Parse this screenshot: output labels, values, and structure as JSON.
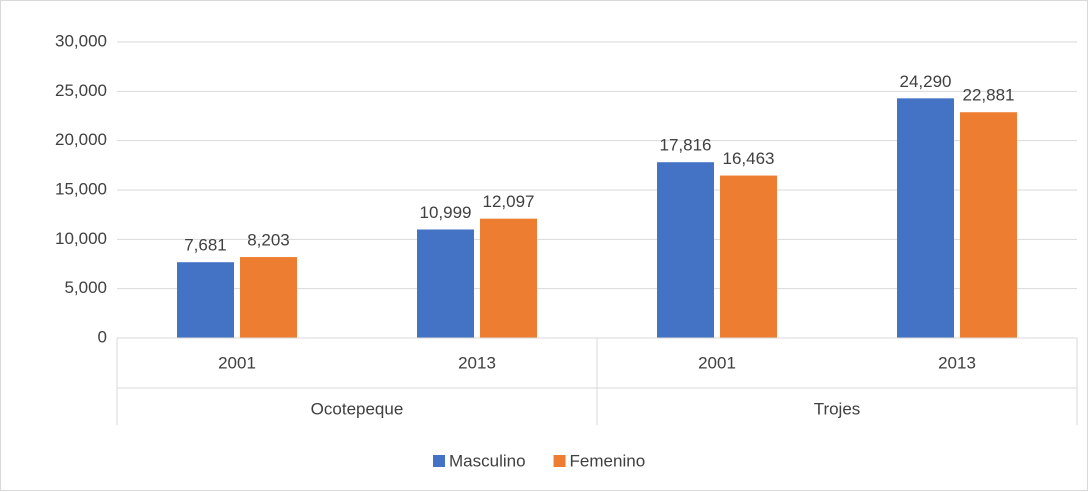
{
  "chart_data": {
    "type": "bar",
    "categories": [
      "2001",
      "2013",
      "2001",
      "2013"
    ],
    "groups": [
      "Ocotepeque",
      "Trojes"
    ],
    "series": [
      {
        "name": "Masculino",
        "color": "#4472c4",
        "values": [
          7681,
          10999,
          17816,
          24290
        ],
        "value_labels": [
          "7,681",
          "10,999",
          "17,816",
          "24,290"
        ]
      },
      {
        "name": "Femenino",
        "color": "#ed7d31",
        "values": [
          8203,
          12097,
          16463,
          22881
        ],
        "value_labels": [
          "8,203",
          "12,097",
          "16,463",
          "22,881"
        ]
      }
    ],
    "ylim": [
      0,
      30000
    ],
    "yticks": [
      0,
      {
        "value": 5000,
        "label": "5,000"
      },
      {
        "value": 10000,
        "label": "10,000"
      },
      {
        "value": 15000,
        "label": "15,000"
      },
      {
        "value": 20000,
        "label": "20,000"
      },
      {
        "value": 25000,
        "label": "25,000"
      },
      {
        "value": 30000,
        "label": "30,000"
      }
    ],
    "grid": true,
    "legend": "bottom"
  }
}
